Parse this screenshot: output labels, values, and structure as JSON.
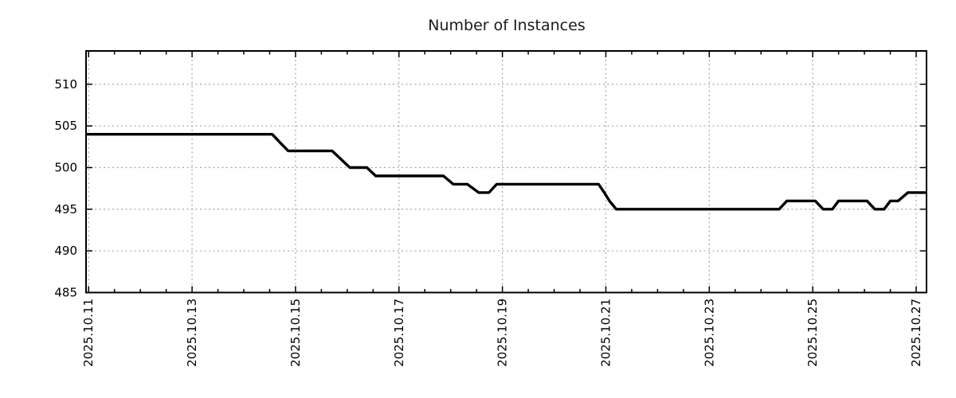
{
  "title": "Number of Instances",
  "colors": {
    "background": "#ffffff",
    "line": "#000000",
    "grid": "#a6a6a6",
    "axis": "#000000",
    "tick_label": "#000000",
    "title_text": "#1a1a1a"
  },
  "chart_data": {
    "type": "line",
    "title": "Number of Instances",
    "legend": "none",
    "grid": "dotted-major",
    "x_axis": {
      "unit": "date (2025.10.DD, fractional day)",
      "range_days": [
        10.95,
        27.2
      ],
      "tick_days": [
        11,
        13,
        15,
        17,
        19,
        21,
        23,
        25,
        27
      ],
      "tick_labels": [
        "2025.10.11",
        "2025.10.13",
        "2025.10.15",
        "2025.10.17",
        "2025.10.19",
        "2025.10.21",
        "2025.10.23",
        "2025.10.25",
        "2025.10.27"
      ],
      "minor_step_days": 0.5,
      "label_rotation_deg": -90
    },
    "y_axis": {
      "range": [
        485,
        514
      ],
      "ticks": [
        485,
        490,
        495,
        500,
        505,
        510
      ],
      "tick_labels": [
        "485",
        "490",
        "495",
        "500",
        "505",
        "510"
      ]
    },
    "series": [
      {
        "name": "instances",
        "color": "#000000",
        "points": [
          [
            10.95,
            504
          ],
          [
            14.55,
            504
          ],
          [
            14.7,
            503
          ],
          [
            14.86,
            502
          ],
          [
            15.71,
            502
          ],
          [
            15.88,
            501
          ],
          [
            16.05,
            500
          ],
          [
            16.38,
            500
          ],
          [
            16.55,
            499
          ],
          [
            17.86,
            499
          ],
          [
            18.05,
            498
          ],
          [
            18.32,
            498
          ],
          [
            18.54,
            497
          ],
          [
            18.74,
            497
          ],
          [
            18.89,
            498
          ],
          [
            20.86,
            498
          ],
          [
            20.97,
            497
          ],
          [
            21.07,
            496
          ],
          [
            21.2,
            495
          ],
          [
            24.35,
            495
          ],
          [
            24.5,
            496
          ],
          [
            25.05,
            496
          ],
          [
            25.2,
            495
          ],
          [
            25.38,
            495
          ],
          [
            25.5,
            496
          ],
          [
            26.05,
            496
          ],
          [
            26.2,
            495
          ],
          [
            26.38,
            495
          ],
          [
            26.5,
            496
          ],
          [
            26.65,
            496
          ],
          [
            26.84,
            497
          ],
          [
            27.2,
            497
          ]
        ]
      }
    ]
  }
}
